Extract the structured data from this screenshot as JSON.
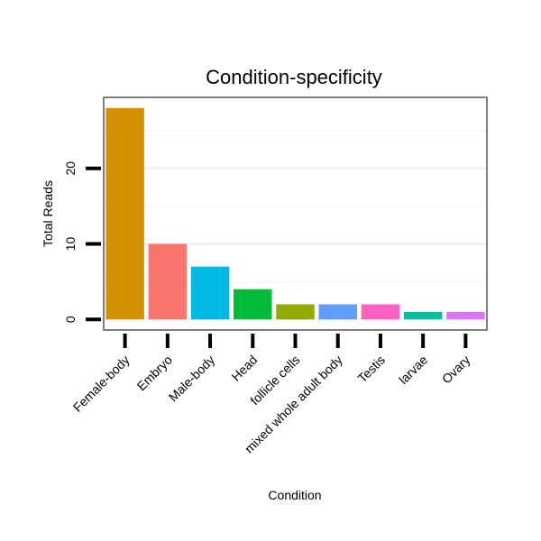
{
  "chart_data": {
    "type": "bar",
    "title": "Condition-specificity",
    "xlabel": "Condition",
    "ylabel": "Total Reads",
    "categories": [
      "Female-body",
      "Embryo",
      "Male-body",
      "Head",
      "follicle cells",
      "mixed whole adult body",
      "Testis",
      "larvae",
      "Ovary"
    ],
    "values": [
      28,
      10,
      7,
      4,
      2,
      2,
      2,
      1,
      1
    ],
    "colors": [
      "#D39200",
      "#F8766D",
      "#00B9E3",
      "#00BA38",
      "#93AA00",
      "#619CFF",
      "#FF61C3",
      "#00C19F",
      "#DB72FB"
    ],
    "yticks": [
      0,
      10,
      20
    ],
    "ylim": [
      -1.4,
      29.4
    ],
    "grid": true,
    "legend": "none"
  }
}
